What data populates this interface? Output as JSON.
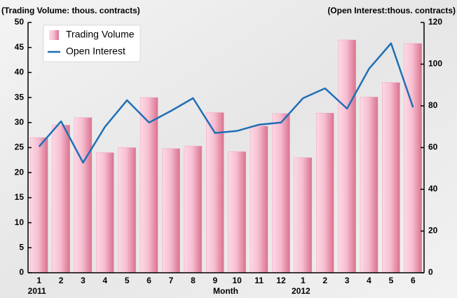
{
  "chart_data": {
    "type": "combo",
    "y_label": "(Trading Volume: thous. contracts)",
    "y2_label": "(Open Interest:thous. contracts)",
    "x_label": "Month",
    "categories": [
      "1",
      "2",
      "3",
      "4",
      "5",
      "6",
      "7",
      "8",
      "9",
      "10",
      "11",
      "12",
      "1",
      "2",
      "3",
      "4",
      "5",
      "6"
    ],
    "years": [
      "2011",
      null,
      null,
      null,
      null,
      null,
      null,
      null,
      null,
      null,
      null,
      null,
      "2012",
      null,
      null,
      null,
      null,
      null
    ],
    "series": [
      {
        "name": "Trading Volume",
        "type": "bar",
        "color": "#f2a0bc",
        "values": [
          27,
          29.5,
          31,
          24,
          25,
          35,
          24.8,
          25.3,
          32,
          24.2,
          29.3,
          31.8,
          23,
          31.9,
          46.5,
          35.1,
          38,
          45.8
        ]
      },
      {
        "name": "Open Interest",
        "type": "line",
        "axis": "y2",
        "color": "#1f6fb5",
        "values": [
          60.5,
          72.6,
          52.8,
          70,
          82.7,
          72,
          77.6,
          83.7,
          67,
          68,
          71,
          72,
          83.7,
          88.4,
          78.7,
          97.8,
          110,
          79.3
        ]
      }
    ],
    "ylim": [
      0,
      50
    ],
    "yticks": [
      0,
      5,
      10,
      15,
      20,
      25,
      30,
      35,
      40,
      45,
      50
    ],
    "y2lim": [
      0,
      120
    ],
    "y2ticks": [
      0,
      20,
      40,
      60,
      80,
      100,
      120
    ],
    "legend": "upper left",
    "grid": false
  }
}
